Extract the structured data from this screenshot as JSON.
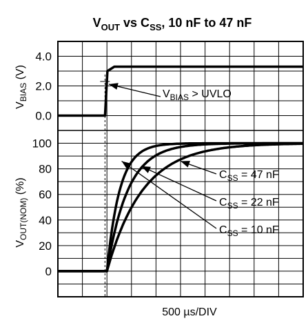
{
  "chart_data": [
    {
      "type": "line",
      "panel": "top",
      "title_main": "V",
      "title_sub1": "OUT",
      "title_mid": " vs C",
      "title_sub2": "SS",
      "title_end": ", 10 nF to 47 nF",
      "ylabel_main": "V",
      "ylabel_sub": "BIAS",
      "ylabel_end": " (V)",
      "ylim": [
        -1,
        5
      ],
      "yticks": [
        "0.0",
        "2.0",
        "4.0"
      ],
      "yvals": [
        0,
        2,
        4
      ],
      "xlim": [
        0,
        10
      ],
      "series": [
        {
          "x": [
            0,
            1.92,
            2.02,
            2.3,
            10
          ],
          "y": [
            0,
            0,
            3.0,
            3.3,
            3.3
          ]
        }
      ],
      "annotation": {
        "main": "V",
        "sub": "BIAS",
        "end": " > UVLO",
        "target": [
          2.02,
          2.3
        ]
      },
      "marker_x": 1.92
    },
    {
      "type": "line",
      "panel": "bottom",
      "ylabel_main": "V",
      "ylabel_sub": "OUT(NOM)",
      "ylabel_end": " (%)",
      "ylim": [
        -20,
        110
      ],
      "yticks": [
        "0",
        "20",
        "40",
        "60",
        "80",
        "100"
      ],
      "yvals": [
        0,
        20,
        40,
        60,
        80,
        100
      ],
      "xlim": [
        0,
        10
      ],
      "xlabel": "500 µs/DIV",
      "start_x": 2.0,
      "series": [
        {
          "name": "C = 10 nF",
          "label_main": "C",
          "label_sub": "SS",
          "label_end": " = 10 nF",
          "tau": 0.52,
          "arrow_to": [
            2.6,
            86
          ]
        },
        {
          "name": "C = 22 nF",
          "label_main": "C",
          "label_sub": "SS",
          "label_end": " = 22 nF",
          "tau": 0.85,
          "arrow_to": [
            3.4,
            82
          ]
        },
        {
          "name": "C = 47 nF",
          "label_main": "C",
          "label_sub": "SS",
          "label_end": " = 47 nF",
          "tau": 1.45,
          "arrow_to": [
            5.0,
            86
          ]
        }
      ]
    }
  ]
}
